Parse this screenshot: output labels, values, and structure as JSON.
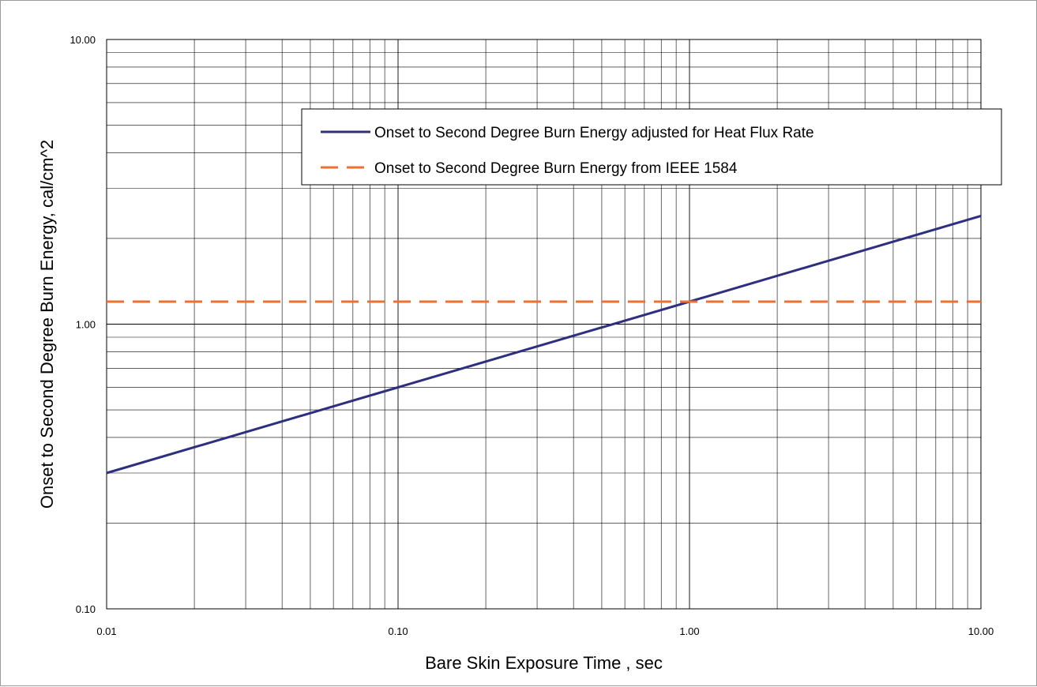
{
  "chart_data": {
    "type": "line",
    "title": "",
    "xlabel": "Bare Skin Exposure Time , sec",
    "ylabel": "Onset to Second Degree Burn Energy, cal/cm^2",
    "x_scale": "log",
    "y_scale": "log",
    "xlim": [
      0.01,
      10
    ],
    "ylim": [
      0.1,
      10
    ],
    "grid": true,
    "legend_position": "upper-right",
    "x_tick_labels": [
      "0.01",
      "0.10",
      "1.00",
      "10.00"
    ],
    "x_tick_values": [
      0.01,
      0.1,
      1,
      10
    ],
    "y_tick_labels": [
      "0.10",
      "1.00",
      "10.00"
    ],
    "y_tick_values": [
      0.1,
      1,
      10
    ],
    "series": [
      {
        "name": "Onset to Second Degree Burn Energy adjusted for Heat Flux Rate",
        "color": "#2e2f7f",
        "style": "solid",
        "x": [
          0.01,
          0.1,
          1,
          10
        ],
        "y": [
          0.3,
          0.6,
          1.2,
          2.4
        ]
      },
      {
        "name": "Onset to Second Degree Burn Energy from IEEE 1584",
        "color": "#f07030",
        "style": "dashed",
        "x": [
          0.01,
          10
        ],
        "y": [
          1.2,
          1.2
        ]
      }
    ]
  }
}
